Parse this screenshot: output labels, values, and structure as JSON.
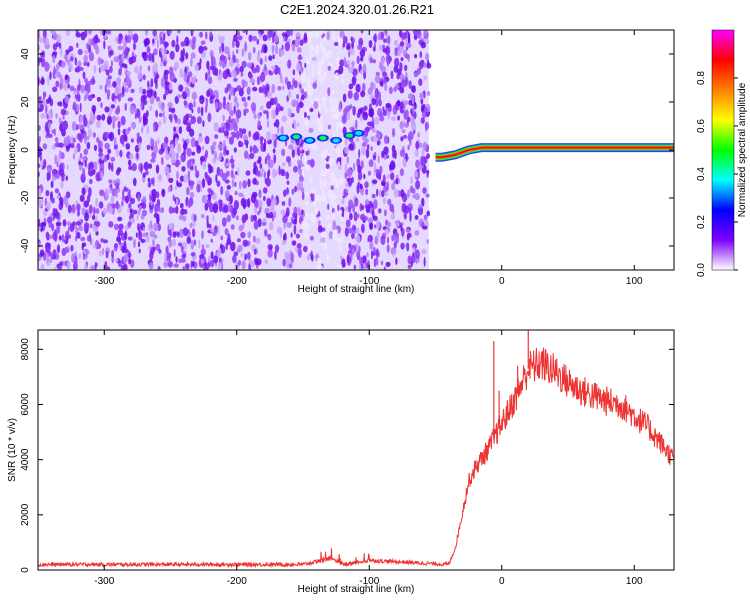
{
  "title": "C2E1.2024.320.01.26.R21",
  "chart_data": [
    {
      "type": "heatmap",
      "xlabel": "Height of straight line (km)",
      "ylabel": "Frequency (Hz)",
      "xlim": [
        -350,
        130
      ],
      "ylim": [
        -50,
        50
      ],
      "xticks": [
        -300,
        -200,
        -100,
        0,
        100
      ],
      "yticks": [
        -40,
        -20,
        0,
        20,
        40
      ],
      "noise_region_x": [
        -350,
        -55
      ],
      "signal_track": [
        {
          "x": -165,
          "y": 5
        },
        {
          "x": -155,
          "y": 5.5
        },
        {
          "x": -145,
          "y": 4
        },
        {
          "x": -135,
          "y": 5
        },
        {
          "x": -125,
          "y": 4
        },
        {
          "x": -115,
          "y": 6
        },
        {
          "x": -108,
          "y": 7
        },
        {
          "x": -50,
          "y": -3
        },
        {
          "x": -45,
          "y": -3
        },
        {
          "x": -35,
          "y": -2
        },
        {
          "x": -25,
          "y": 0
        },
        {
          "x": -15,
          "y": 1
        },
        {
          "x": 0,
          "y": 1
        },
        {
          "x": 50,
          "y": 1
        },
        {
          "x": 100,
          "y": 1
        },
        {
          "x": 130,
          "y": 1
        }
      ],
      "colorbar": {
        "label": "Normalized spectral amplitude",
        "range": [
          0,
          1
        ],
        "ticks": [
          "0.0",
          "0.2",
          "0.4",
          "0.6",
          "0.8"
        ],
        "colors": [
          "#ffffff",
          "#7f00ff",
          "#0000ff",
          "#00ffff",
          "#00ff00",
          "#ffff00",
          "#ff8000",
          "#ff0000",
          "#ff00ff"
        ]
      }
    },
    {
      "type": "line",
      "xlabel": "Height of straight line (km)",
      "ylabel": "SNR (10 * v/v)",
      "xlim": [
        -350,
        130
      ],
      "ylim": [
        0,
        8700
      ],
      "xticks": [
        -300,
        -200,
        -100,
        0,
        100
      ],
      "yticks": [
        0,
        2000,
        4000,
        6000,
        8000
      ],
      "color": "#ee3333",
      "envelope": [
        {
          "x": -350,
          "y": 200
        },
        {
          "x": -150,
          "y": 200
        },
        {
          "x": -130,
          "y": 400
        },
        {
          "x": -120,
          "y": 200
        },
        {
          "x": -100,
          "y": 350
        },
        {
          "x": -40,
          "y": 200
        },
        {
          "x": -35,
          "y": 800
        },
        {
          "x": -30,
          "y": 2000
        },
        {
          "x": -25,
          "y": 3200
        },
        {
          "x": -20,
          "y": 3700
        },
        {
          "x": -10,
          "y": 4400
        },
        {
          "x": 0,
          "y": 5300
        },
        {
          "x": 10,
          "y": 6200
        },
        {
          "x": 20,
          "y": 7300
        },
        {
          "x": 30,
          "y": 7500
        },
        {
          "x": 40,
          "y": 7200
        },
        {
          "x": 50,
          "y": 6800
        },
        {
          "x": 60,
          "y": 6500
        },
        {
          "x": 70,
          "y": 6300
        },
        {
          "x": 80,
          "y": 6100
        },
        {
          "x": 90,
          "y": 6000
        },
        {
          "x": 100,
          "y": 5600
        },
        {
          "x": 110,
          "y": 5200
        },
        {
          "x": 120,
          "y": 4600
        },
        {
          "x": 130,
          "y": 4000
        }
      ],
      "spikes": [
        {
          "x": -6,
          "y": 8300
        },
        {
          "x": 20,
          "y": 8700
        },
        {
          "x": 12,
          "y": 7400
        },
        {
          "x": -2,
          "y": 6500
        }
      ]
    }
  ]
}
